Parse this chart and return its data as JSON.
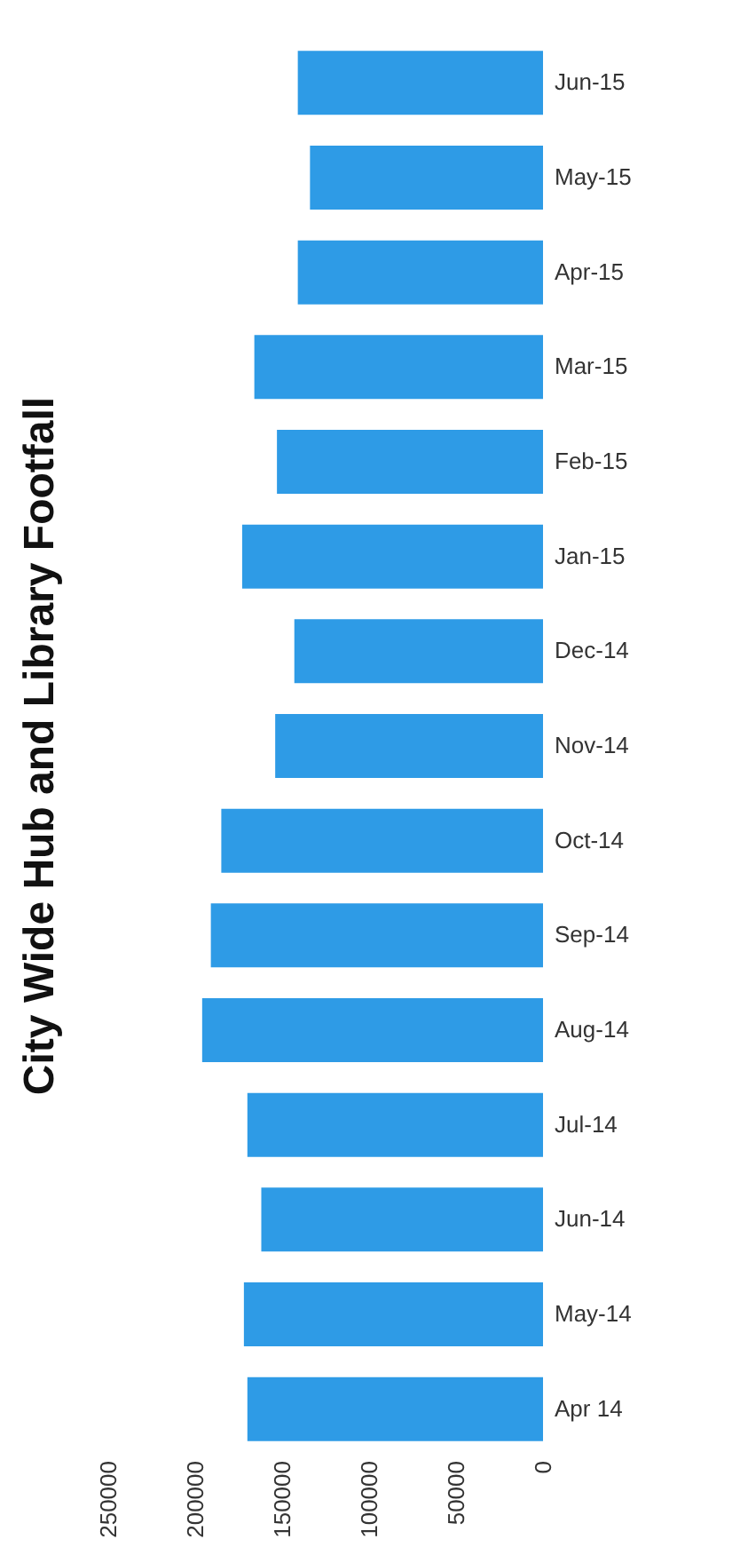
{
  "chart_data": {
    "type": "bar",
    "title": "City Wide Hub and Library Footfall",
    "orientation": "horizontal",
    "categories": [
      "Jun-15",
      "May-15",
      "Apr-15",
      "Mar-15",
      "Feb-15",
      "Jan-15",
      "Dec-14",
      "Nov-14",
      "Oct-14",
      "Sep-14",
      "Aug-14",
      "Jul-14",
      "Jun-14",
      "May-14",
      "Apr 14"
    ],
    "values": [
      141000,
      134000,
      141000,
      166000,
      153000,
      173000,
      143000,
      154000,
      185000,
      191000,
      196000,
      170000,
      162000,
      172000,
      170000
    ],
    "color": "#2e9be6",
    "xlim": [
      250000,
      0
    ],
    "xticks": [
      250000,
      200000,
      150000,
      100000,
      50000,
      0
    ],
    "grid": false
  }
}
